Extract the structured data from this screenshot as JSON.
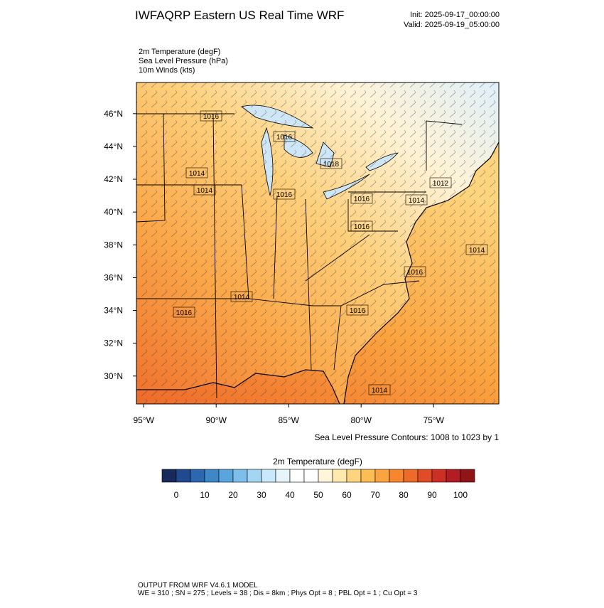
{
  "header": {
    "title": "IWFAQRP Eastern US Real Time WRF",
    "init": "Init: 2025-09-17_00:00:00",
    "valid": "Valid: 2025-09-19_05:00:00"
  },
  "fields": [
    "2m Temperature   (degF)",
    "Sea Level Pressure   (hPa)",
    "10m Winds   (kts)"
  ],
  "map": {
    "lonlim": [
      -95.5,
      -70.5
    ],
    "latlim": [
      28.3,
      47.9
    ],
    "lonticks": [
      {
        "value": -95,
        "label": "95°W"
      },
      {
        "value": -90,
        "label": "90°W"
      },
      {
        "value": -85,
        "label": "85°W"
      },
      {
        "value": -80,
        "label": "80°W"
      },
      {
        "value": -75,
        "label": "75°W"
      }
    ],
    "latticks": [
      {
        "value": 46,
        "label": "46°N"
      },
      {
        "value": 44,
        "label": "44°N"
      },
      {
        "value": 42,
        "label": "42°N"
      },
      {
        "value": 40,
        "label": "40°N"
      },
      {
        "value": 38,
        "label": "38°N"
      },
      {
        "value": 36,
        "label": "36°N"
      },
      {
        "value": 34,
        "label": "34°N"
      },
      {
        "value": 32,
        "label": "32°N"
      },
      {
        "value": 30,
        "label": "30°N"
      }
    ],
    "contour_labels": [
      "1016",
      "1016",
      "1018",
      "1014",
      "1014",
      "1016",
      "1016",
      "1016",
      "1012",
      "1014",
      "1016",
      "1014",
      "1014",
      "1016",
      "1016",
      "1014"
    ],
    "contour_note": "Sea Level Pressure Contours: 1008 to 1023 by 1"
  },
  "colorbar": {
    "title": "2m Temperature  (degF)",
    "colors": [
      "#162a5c",
      "#1f4a8f",
      "#2b68b0",
      "#3f88c8",
      "#5aa5db",
      "#7cbfe9",
      "#a3d6f3",
      "#c9e8f9",
      "#e6f4fc",
      "#ffffff",
      "#ffffff",
      "#fff6d9",
      "#ffe9ad",
      "#fed57e",
      "#fdbd55",
      "#fba33f",
      "#f7862f",
      "#ee6a2a",
      "#e04c26",
      "#cc2f26",
      "#b21d23",
      "#8f1518"
    ],
    "labels": [
      0,
      10,
      20,
      30,
      40,
      50,
      60,
      70,
      80,
      90,
      100
    ]
  },
  "footer": {
    "line1": "OUTPUT FROM WRF V4.6.1 MODEL",
    "line2": "WE = 310 ; SN = 275 ; Levels = 38 ; Dis = 8km ; Phys Opt = 8 ; PBL Opt = 1 ; Cu Opt = 3"
  }
}
